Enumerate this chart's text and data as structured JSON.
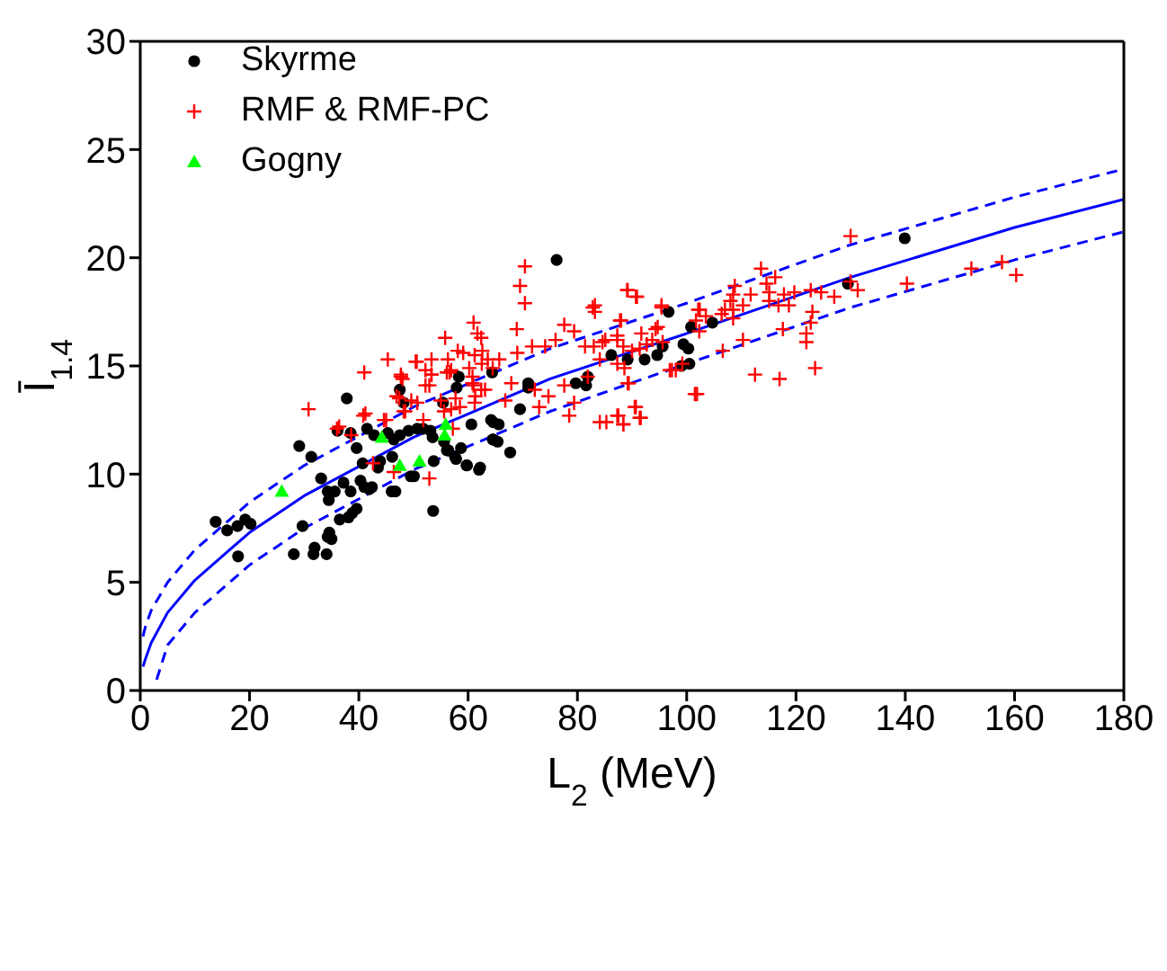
{
  "chart_data": {
    "type": "scatter",
    "xlabel": "L$_{2}$ (MeV)",
    "ylabel": "Ī$_{1.4}$",
    "xlim": [
      0,
      180
    ],
    "ylim": [
      0,
      30
    ],
    "xticks": [
      0,
      20,
      40,
      60,
      80,
      100,
      120,
      140,
      160,
      180
    ],
    "yticks": [
      0,
      5,
      10,
      15,
      20,
      25,
      30
    ],
    "legend": "top left",
    "series": [
      {
        "name": "Skyrme",
        "color": "#000000",
        "marker": "circle",
        "x": [
          13.8,
          15.9,
          17.8,
          19.2,
          20.2,
          17.9,
          29.1,
          31.3,
          37.8,
          33.1,
          34.3,
          35.6,
          34.5,
          37.2,
          38.5,
          29.7,
          28.1,
          31.9,
          31.7,
          34.1,
          34.6,
          35,
          34.3,
          36.5,
          38.1,
          38.8,
          39.6,
          40.3,
          41,
          41.9,
          42.4,
          40.7,
          43.5,
          43.9,
          46.1,
          46,
          46.7,
          49.5,
          50.1,
          53.6,
          53.7,
          56.4,
          57.8,
          59.7,
          62,
          36.1,
          38.5,
          41.5,
          39.6,
          42.8,
          45.3,
          46.4,
          47.5,
          49.1,
          50.7,
          51.8,
          53.1,
          53.5,
          55.6,
          56.1,
          47.5,
          48.2,
          55.4,
          58.3,
          64.4,
          64.2,
          64.5,
          76.2,
          57.9,
          71,
          71,
          79.7,
          81.6,
          86.2,
          92.3,
          94.6,
          96.7,
          100.8,
          99.4,
          100.3,
          99,
          100.5,
          60.6,
          64.6,
          65.6,
          64.6,
          65.4,
          67.7,
          58.7,
          57.6,
          59.8,
          62.2,
          69.5,
          139.9,
          129.5,
          104.7,
          89.2,
          95.6,
          81.9
        ],
        "values": [
          7.8,
          7.4,
          7.6,
          7.9,
          7.7,
          6.2,
          11.3,
          10.8,
          13.5,
          9.8,
          9.2,
          9.2,
          8.8,
          9.6,
          9.2,
          7.6,
          6.3,
          6.6,
          6.3,
          6.3,
          7.3,
          7,
          7.1,
          7.9,
          8,
          8.2,
          8.4,
          9.7,
          9.4,
          9.3,
          9.4,
          10.5,
          10.3,
          10.6,
          10.8,
          9.2,
          9.2,
          9.9,
          9.9,
          8.3,
          10.6,
          11.1,
          10.7,
          10.4,
          10.2,
          12,
          11.9,
          12.1,
          11.2,
          11.8,
          11.9,
          11.6,
          11.8,
          12,
          12.1,
          12.1,
          12,
          11.7,
          11.5,
          11.1,
          13.9,
          13.3,
          13.3,
          14.5,
          14.7,
          12.5,
          11.6,
          19.9,
          14,
          14.2,
          14,
          14.2,
          14.1,
          15.5,
          15.3,
          15.5,
          17.5,
          16.8,
          16,
          15.8,
          15,
          15.1,
          12.3,
          12.4,
          12.3,
          11.6,
          11.5,
          11,
          11.2,
          10.8,
          10.4,
          10.3,
          13,
          20.9,
          18.8,
          17,
          15.3,
          15.9,
          14.5
        ]
      },
      {
        "name": "RMF & RMF-PC",
        "color": "#ff0000",
        "marker": "cross",
        "x": [
          55.8,
          61,
          61.7,
          62.4,
          58.1,
          59.1,
          62.6,
          45.3,
          50.4,
          52.2,
          53.3,
          52.9,
          56.1,
          56.9,
          60.2,
          60.8,
          61,
          61.3,
          63.1,
          64.5,
          41,
          47.7,
          48,
          46.9,
          49.6,
          55,
          55.6,
          57.7,
          30.8,
          40.8,
          44.6,
          48.2,
          51.8,
          36.4,
          38.6,
          57.2,
          42.6,
          46.4,
          52.9,
          70.4,
          69.5,
          70.4,
          68.9,
          77.6,
          79.4,
          82.8,
          83.2,
          88,
          89.1,
          90.9,
          95.4,
          102.1,
          101.7,
          94.7,
          91.7,
          87.3,
          84.6,
          81.4,
          76,
          74.1,
          71.7,
          69,
          65.7,
          63.6,
          61.2,
          56.3,
          53.3,
          50.6,
          47.7,
          53.3,
          52.2,
          56.6,
          62.5,
          60.8,
          62.4,
          67.9,
          72.2,
          74.7,
          77.6,
          79.4,
          89.4,
          90.5,
          91.6,
          87.5,
          88.4,
          85.3,
          78.5,
          73,
          66.8,
          61.2,
          58.5,
          56.9,
          50.7,
          47.4,
          41.2,
          45,
          36,
          48.5,
          101.5,
          96.9,
          98,
          130,
          152.1,
          157.7,
          160.3,
          140.3,
          130,
          131.3,
          127,
          124.6,
          122.7,
          119.7,
          117.8,
          116.2,
          113.6,
          114.6,
          115.1,
          111.7,
          108.8,
          108.5,
          108,
          110.3,
          108.5,
          107,
          108.5,
          106.4,
          103.5,
          102.4,
          102.3,
          116.8,
          115.1,
          118.7,
          123,
          122.7,
          121.9,
          121.9,
          117.6,
          110.3,
          106.6,
          112.5,
          117,
          123.5,
          101.9,
          97.3,
          89.2,
          90.7,
          83.2,
          87.8,
          94.3,
          95.4,
          83,
          85.1,
          87.3,
          88.4,
          90,
          91.4,
          92.7,
          93.7,
          95.6,
          84.1,
          87.3,
          88.6,
          89.2,
          81.9,
          84.1,
          87.3,
          88.4,
          91.4,
          90.7,
          99.2
        ],
        "values": [
          16.3,
          17,
          16.5,
          16.3,
          15.7,
          15.6,
          15.7,
          15.3,
          15.2,
          14.8,
          14.6,
          14.1,
          14.7,
          14.8,
          14.9,
          14.5,
          14.1,
          13.6,
          13.9,
          14.9,
          14.7,
          14.5,
          14.4,
          13.6,
          13.4,
          13.4,
          12.9,
          13.5,
          13,
          12.7,
          12.5,
          12.9,
          12.5,
          12.2,
          11.8,
          12.1,
          10.5,
          10.1,
          9.8,
          19.6,
          18.7,
          17.9,
          16.7,
          16.9,
          16.6,
          17.7,
          17.5,
          17.1,
          18.5,
          18.2,
          17.7,
          17.6,
          17.1,
          16.8,
          16.5,
          16.2,
          16.1,
          15.9,
          16.2,
          15.9,
          15.9,
          15.6,
          15.3,
          15.3,
          15.5,
          15.3,
          15.3,
          15.2,
          14.6,
          14.6,
          14.1,
          14.7,
          15.1,
          14.2,
          13.9,
          14.2,
          13.9,
          13.6,
          14.1,
          13.3,
          14.2,
          13.1,
          12.6,
          12.7,
          12.3,
          12.4,
          12.7,
          13.1,
          13.4,
          13.3,
          13.1,
          13,
          13.3,
          13.5,
          12.8,
          12.5,
          12.1,
          12.9,
          13.7,
          14.8,
          14.8,
          21,
          19.5,
          19.8,
          19.2,
          18.8,
          18.9,
          18.5,
          18.2,
          18.4,
          18.5,
          18.4,
          18.3,
          19.1,
          19.5,
          18.8,
          18.4,
          18.3,
          18.7,
          18.3,
          18,
          17.8,
          17.6,
          17.6,
          17.2,
          17.4,
          17.3,
          17.6,
          16.6,
          17.8,
          18,
          17.8,
          17.5,
          17,
          16.5,
          16.1,
          16.7,
          16.2,
          15.7,
          14.6,
          14.4,
          14.9,
          13.7,
          14.8,
          18.5,
          18.2,
          17.8,
          17.1,
          16.7,
          17.8,
          15.9,
          16.2,
          16.4,
          15.9,
          15.7,
          15.8,
          16,
          16.2,
          16.1,
          15.3,
          15.1,
          14.9,
          14.2,
          14.5,
          12.4,
          12.7,
          12.3,
          12.6,
          13.1,
          15.1
        ]
      },
      {
        "name": "Gogny",
        "color": "#00ff00",
        "marker": "triangle",
        "x": [
          25.9,
          44.2,
          47.5,
          51.1,
          55.7,
          55.9
        ],
        "values": [
          9.2,
          11.7,
          10.4,
          10.6,
          11.8,
          12.3
        ]
      },
      {
        "type": "line",
        "color": "#0000ff",
        "line_style": "solid",
        "x": [
          0.5,
          1,
          2,
          5,
          10,
          20,
          30,
          50,
          75,
          100,
          130,
          160,
          180
        ],
        "values": [
          1.1,
          1.5,
          2.2,
          3.6,
          5.1,
          7.3,
          9,
          11.7,
          14.4,
          16.5,
          19.1,
          21.4,
          22.7
        ]
      },
      {
        "type": "line",
        "color": "#0000ff",
        "line_style": "dashed",
        "x": [
          0.5,
          1,
          2,
          5,
          10,
          20,
          30,
          50,
          75,
          100,
          130,
          160,
          180
        ],
        "values": [
          2.5,
          3,
          3.7,
          5,
          6.5,
          8.7,
          10.4,
          13.1,
          15.8,
          17.9,
          20.6,
          22.8,
          24.1
        ]
      },
      {
        "type": "line",
        "color": "#0000ff",
        "line_style": "dashed",
        "x": [
          3,
          5,
          10,
          20,
          30,
          50,
          75,
          100,
          130,
          160,
          180
        ],
        "values": [
          0.5,
          2.1,
          3.6,
          5.8,
          7.5,
          10.2,
          12.9,
          15.1,
          17.7,
          19.9,
          21.2
        ]
      }
    ]
  }
}
